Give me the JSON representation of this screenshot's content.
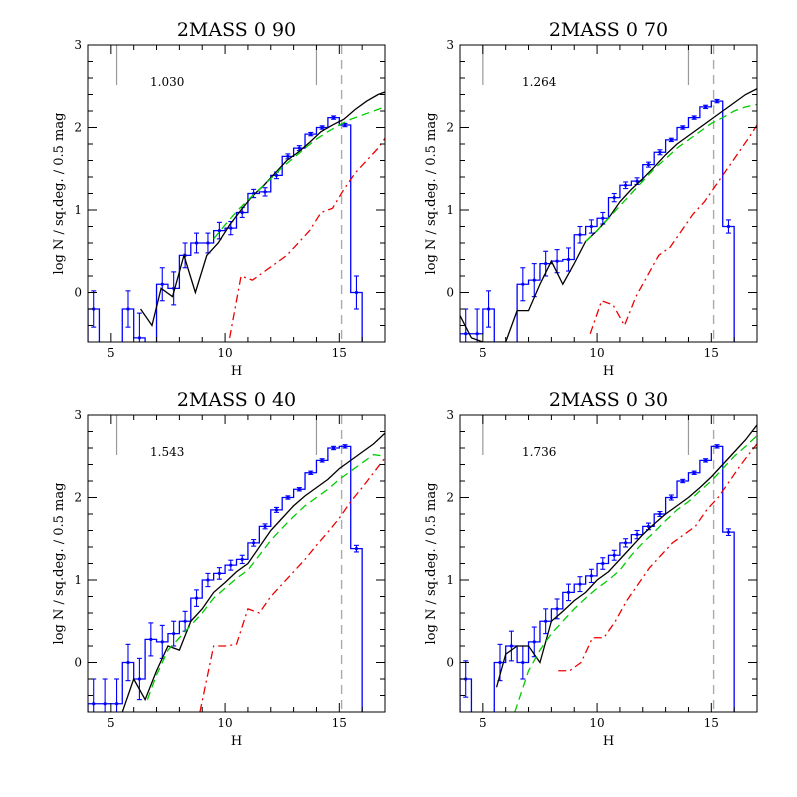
{
  "chart_data": [
    {
      "type": "line",
      "title": "2MASS 0 90",
      "xlabel": "H",
      "ylabel": "log N / sq.deg. / 0.5 mag",
      "xlim": [
        4,
        17
      ],
      "ylim": [
        -0.6,
        3
      ],
      "xticks": [
        5,
        10,
        15
      ],
      "yticks": [
        0,
        1,
        2,
        3
      ],
      "annotation": "1.030",
      "vline_completeness": 15.1,
      "markers_x": [
        5.25,
        14.0
      ],
      "series": [
        {
          "kind": "histogram",
          "color": "#0000ff",
          "bin_width": 0.5,
          "x": [
            4.25,
            5.75,
            6.25,
            7.25,
            7.75,
            8.25,
            8.75,
            9.25,
            9.75,
            10.25,
            10.75,
            11.25,
            11.75,
            12.25,
            12.75,
            13.25,
            13.75,
            14.25,
            14.75,
            15.25,
            15.75
          ],
          "y": [
            -0.2,
            -0.2,
            -0.55,
            0.1,
            0.05,
            0.45,
            0.6,
            0.6,
            0.75,
            0.78,
            0.97,
            1.2,
            1.22,
            1.42,
            1.65,
            1.75,
            1.92,
            2.0,
            2.12,
            2.03,
            0.0
          ],
          "err": [
            0.22,
            0.22,
            0.3,
            0.2,
            0.2,
            0.15,
            0.12,
            0.12,
            0.1,
            0.08,
            0.06,
            0.05,
            0.05,
            0.04,
            0.03,
            0.03,
            0.02,
            0.02,
            0.02,
            0.02,
            0.2
          ]
        },
        {
          "kind": "line",
          "color": "#000000",
          "dash": "solid",
          "x": [
            6.3,
            6.8,
            7.2,
            7.7,
            8.2,
            8.7,
            9.2,
            9.7,
            10.2,
            10.7,
            11.2,
            11.7,
            12.2,
            12.7,
            13.2,
            13.7,
            14.2,
            14.7,
            15.2,
            15.7,
            16.2,
            16.7,
            17
          ],
          "y": [
            -0.2,
            -0.4,
            0.05,
            -0.05,
            0.45,
            0.0,
            0.45,
            0.6,
            0.82,
            1.0,
            1.17,
            1.3,
            1.45,
            1.6,
            1.7,
            1.82,
            1.95,
            2.03,
            2.1,
            2.22,
            2.32,
            2.4,
            2.43
          ]
        },
        {
          "kind": "line",
          "color": "#00cc00",
          "dash": "dashed",
          "x": [
            9.5,
            10.0,
            10.5,
            11.0,
            11.5,
            12.0,
            12.5,
            13.0,
            13.5,
            14.0,
            14.5,
            15.0,
            15.5,
            16.0,
            16.5,
            17
          ],
          "y": [
            0.65,
            0.82,
            0.98,
            1.12,
            1.25,
            1.38,
            1.52,
            1.63,
            1.75,
            1.86,
            1.95,
            2.03,
            2.1,
            2.15,
            2.2,
            2.25
          ]
        },
        {
          "kind": "line",
          "color": "#ee0000",
          "dash": "dashdot",
          "x": [
            10.2,
            10.7,
            11.2,
            11.7,
            12.2,
            12.7,
            13.2,
            13.7,
            14.2,
            14.7,
            15.2,
            15.7,
            16.2,
            16.7,
            17
          ],
          "y": [
            -0.55,
            0.2,
            0.15,
            0.25,
            0.35,
            0.45,
            0.6,
            0.75,
            0.97,
            1.02,
            1.25,
            1.45,
            1.6,
            1.75,
            1.87
          ]
        }
      ]
    },
    {
      "type": "line",
      "title": "2MASS 0 70",
      "xlabel": "H",
      "ylabel": "log N / sq.deg. / 0.5 mag",
      "xlim": [
        4,
        17
      ],
      "ylim": [
        -0.6,
        3
      ],
      "xticks": [
        5,
        10,
        15
      ],
      "yticks": [
        0,
        1,
        2,
        3
      ],
      "annotation": "1.264",
      "vline_completeness": 15.1,
      "markers_x": [
        5.0,
        14.0
      ],
      "series": [
        {
          "kind": "histogram",
          "color": "#0000ff",
          "bin_width": 0.5,
          "x": [
            4.25,
            4.75,
            5.25,
            6.75,
            7.25,
            7.75,
            8.25,
            8.75,
            9.25,
            9.75,
            10.25,
            10.75,
            11.25,
            11.75,
            12.25,
            12.75,
            13.25,
            13.75,
            14.25,
            14.75,
            15.25,
            15.75
          ],
          "y": [
            -0.5,
            -0.5,
            -0.2,
            0.1,
            0.15,
            0.35,
            0.38,
            0.4,
            0.7,
            0.8,
            0.9,
            1.15,
            1.3,
            1.35,
            1.55,
            1.7,
            1.85,
            2.0,
            2.12,
            2.25,
            2.32,
            0.8
          ],
          "err": [
            0.3,
            0.3,
            0.22,
            0.2,
            0.2,
            0.15,
            0.14,
            0.14,
            0.1,
            0.08,
            0.07,
            0.05,
            0.04,
            0.04,
            0.03,
            0.03,
            0.02,
            0.02,
            0.02,
            0.02,
            0.02,
            0.08
          ]
        },
        {
          "kind": "line",
          "color": "#000000",
          "dash": "solid",
          "x": [
            4.0,
            4.5,
            5.0,
            5.5,
            6.0,
            6.5,
            7.0,
            7.5,
            8.0,
            8.5,
            9.0,
            9.5,
            10.0,
            10.5,
            11.0,
            11.5,
            12.0,
            12.5,
            13.0,
            13.5,
            14.0,
            14.5,
            15.0,
            15.5,
            16.0,
            16.5,
            17
          ],
          "y": [
            -0.28,
            -0.55,
            -0.6,
            -0.6,
            -0.6,
            -0.22,
            -0.22,
            0.1,
            0.38,
            0.1,
            0.35,
            0.62,
            0.75,
            0.9,
            1.1,
            1.25,
            1.38,
            1.52,
            1.67,
            1.8,
            1.9,
            2.0,
            2.1,
            2.2,
            2.3,
            2.4,
            2.47
          ]
        },
        {
          "kind": "line",
          "color": "#00cc00",
          "dash": "dashed",
          "x": [
            9.5,
            10.0,
            10.5,
            11.0,
            11.5,
            12.0,
            12.5,
            13.0,
            13.5,
            14.0,
            14.5,
            15.0,
            15.5,
            16.0,
            16.5,
            17
          ],
          "y": [
            0.62,
            0.75,
            0.9,
            1.05,
            1.2,
            1.35,
            1.5,
            1.62,
            1.75,
            1.85,
            1.95,
            2.05,
            2.12,
            2.2,
            2.25,
            2.28
          ]
        },
        {
          "kind": "line",
          "color": "#ee0000",
          "dash": "dashdot",
          "x": [
            9.7,
            10.2,
            10.7,
            11.2,
            11.7,
            12.2,
            12.7,
            13.2,
            13.7,
            14.2,
            14.7,
            15.2,
            15.7,
            16.2,
            16.7,
            17
          ],
          "y": [
            -0.5,
            -0.1,
            -0.15,
            -0.4,
            -0.05,
            0.2,
            0.45,
            0.55,
            0.75,
            0.95,
            1.1,
            1.3,
            1.5,
            1.7,
            1.9,
            2.03
          ]
        }
      ]
    },
    {
      "type": "line",
      "title": "2MASS 0 40",
      "xlabel": "H",
      "ylabel": "log N / sq.deg. / 0.5 mag",
      "xlim": [
        4,
        17
      ],
      "ylim": [
        -0.6,
        3
      ],
      "xticks": [
        5,
        10,
        15
      ],
      "yticks": [
        0,
        1,
        2,
        3
      ],
      "annotation": "1.543",
      "vline_completeness": 15.1,
      "markers_x": [
        5.25,
        14.0
      ],
      "series": [
        {
          "kind": "histogram",
          "color": "#0000ff",
          "bin_width": 0.5,
          "x": [
            4.25,
            4.75,
            5.25,
            5.75,
            6.25,
            6.75,
            7.25,
            7.75,
            8.25,
            8.75,
            9.25,
            9.75,
            10.25,
            10.75,
            11.25,
            11.75,
            12.25,
            12.75,
            13.25,
            13.75,
            14.25,
            14.75,
            15.25,
            15.75
          ],
          "y": [
            -0.5,
            -0.5,
            -0.5,
            0.0,
            -0.2,
            0.28,
            0.25,
            0.35,
            0.5,
            0.78,
            1.0,
            1.08,
            1.18,
            1.25,
            1.45,
            1.65,
            1.85,
            2.0,
            2.1,
            2.3,
            2.45,
            2.6,
            2.62,
            1.38
          ],
          "err": [
            0.3,
            0.3,
            0.3,
            0.22,
            0.25,
            0.2,
            0.2,
            0.15,
            0.12,
            0.1,
            0.08,
            0.07,
            0.06,
            0.05,
            0.04,
            0.03,
            0.03,
            0.02,
            0.02,
            0.02,
            0.02,
            0.02,
            0.02,
            0.04
          ]
        },
        {
          "kind": "line",
          "color": "#000000",
          "dash": "solid",
          "x": [
            5.5,
            6.0,
            6.5,
            7.0,
            7.5,
            8.0,
            8.5,
            9.0,
            9.5,
            10.0,
            10.5,
            11.0,
            11.5,
            12.0,
            12.5,
            13.0,
            13.5,
            14.0,
            14.5,
            15.0,
            15.5,
            16.0,
            16.5,
            17
          ],
          "y": [
            -0.6,
            -0.2,
            -0.45,
            -0.1,
            0.2,
            0.15,
            0.5,
            0.65,
            0.85,
            0.97,
            1.1,
            1.2,
            1.4,
            1.6,
            1.75,
            1.9,
            2.02,
            2.12,
            2.22,
            2.35,
            2.45,
            2.55,
            2.65,
            2.78
          ]
        },
        {
          "kind": "line",
          "color": "#00cc00",
          "dash": "dashed",
          "x": [
            6.6,
            7.0,
            7.5,
            8.0,
            8.5,
            9.0,
            9.5,
            10.0,
            10.5,
            11.0,
            11.5,
            12.0,
            12.5,
            13.0,
            13.5,
            14.0,
            14.5,
            15.0,
            15.5,
            16.0,
            16.5,
            17
          ],
          "y": [
            -0.45,
            -0.15,
            0.15,
            0.3,
            0.45,
            0.6,
            0.78,
            0.9,
            1.02,
            1.12,
            1.3,
            1.48,
            1.63,
            1.77,
            1.9,
            2.0,
            2.1,
            2.22,
            2.32,
            2.42,
            2.52,
            2.5
          ]
        },
        {
          "kind": "line",
          "color": "#ee0000",
          "dash": "dashdot",
          "x": [
            8.9,
            9.5,
            10.0,
            10.5,
            11.0,
            11.5,
            12.0,
            12.5,
            13.0,
            13.5,
            14.0,
            14.5,
            15.0,
            15.5,
            16.0,
            16.5,
            17
          ],
          "y": [
            -0.6,
            0.2,
            0.2,
            0.22,
            0.65,
            0.6,
            0.8,
            0.95,
            1.1,
            1.25,
            1.42,
            1.58,
            1.75,
            1.95,
            2.12,
            2.3,
            2.48
          ]
        }
      ]
    },
    {
      "type": "line",
      "title": "2MASS 0 30",
      "xlabel": "H",
      "ylabel": "log N / sq.deg. / 0.5 mag",
      "xlim": [
        4,
        17
      ],
      "ylim": [
        -0.6,
        3
      ],
      "xticks": [
        5,
        10,
        15
      ],
      "yticks": [
        0,
        1,
        2,
        3
      ],
      "annotation": "1.736",
      "vline_completeness": 15.1,
      "markers_x": [
        5.0,
        14.0
      ],
      "series": [
        {
          "kind": "histogram",
          "color": "#0000ff",
          "bin_width": 0.5,
          "x": [
            4.25,
            5.75,
            6.25,
            6.75,
            7.25,
            7.75,
            8.25,
            8.75,
            9.25,
            9.75,
            10.25,
            10.75,
            11.25,
            11.75,
            12.25,
            12.75,
            13.25,
            13.75,
            14.25,
            14.75,
            15.25,
            15.75
          ],
          "y": [
            -0.2,
            0.0,
            0.2,
            0.0,
            0.25,
            0.5,
            0.65,
            0.85,
            0.95,
            1.05,
            1.2,
            1.3,
            1.45,
            1.55,
            1.65,
            1.8,
            2.0,
            2.2,
            2.3,
            2.45,
            2.62,
            1.58
          ],
          "err": [
            0.22,
            0.22,
            0.18,
            0.2,
            0.18,
            0.15,
            0.12,
            0.1,
            0.09,
            0.08,
            0.07,
            0.06,
            0.05,
            0.05,
            0.04,
            0.03,
            0.03,
            0.02,
            0.02,
            0.02,
            0.02,
            0.04
          ]
        },
        {
          "kind": "line",
          "color": "#000000",
          "dash": "solid",
          "x": [
            5.6,
            6.0,
            6.5,
            7.0,
            7.5,
            8.0,
            8.5,
            9.0,
            9.5,
            10.0,
            10.5,
            11.0,
            11.5,
            12.0,
            12.5,
            13.0,
            13.5,
            14.0,
            14.5,
            15.0,
            15.5,
            16.0,
            16.5,
            17
          ],
          "y": [
            -0.3,
            0.1,
            0.2,
            0.2,
            0.0,
            0.5,
            0.62,
            0.75,
            0.85,
            1.0,
            1.1,
            1.25,
            1.4,
            1.55,
            1.68,
            1.8,
            1.9,
            2.0,
            2.12,
            2.25,
            2.4,
            2.55,
            2.7,
            2.88
          ]
        },
        {
          "kind": "line",
          "color": "#00cc00",
          "dash": "dashed",
          "x": [
            6.4,
            7.0,
            7.5,
            8.0,
            8.5,
            9.0,
            9.5,
            10.0,
            10.5,
            11.0,
            11.5,
            12.0,
            12.5,
            13.0,
            13.5,
            14.0,
            14.5,
            15.0,
            15.5,
            16.0,
            16.5,
            17
          ],
          "y": [
            -0.6,
            -0.1,
            0.15,
            0.35,
            0.5,
            0.65,
            0.78,
            0.9,
            1.0,
            1.12,
            1.3,
            1.45,
            1.58,
            1.72,
            1.85,
            1.95,
            2.08,
            2.2,
            2.35,
            2.5,
            2.62,
            2.75
          ]
        },
        {
          "kind": "line",
          "color": "#ee0000",
          "dash": "dashdot",
          "x": [
            8.3,
            8.8,
            9.3,
            9.8,
            10.3,
            10.8,
            11.3,
            11.8,
            12.3,
            12.8,
            13.3,
            13.8,
            14.3,
            14.8,
            15.3,
            15.8,
            16.3,
            16.8,
            17
          ],
          "y": [
            -0.1,
            -0.1,
            0.0,
            0.3,
            0.3,
            0.5,
            0.75,
            0.95,
            1.15,
            1.3,
            1.45,
            1.55,
            1.65,
            1.85,
            2.0,
            2.2,
            2.4,
            2.58,
            2.65
          ]
        }
      ]
    }
  ]
}
